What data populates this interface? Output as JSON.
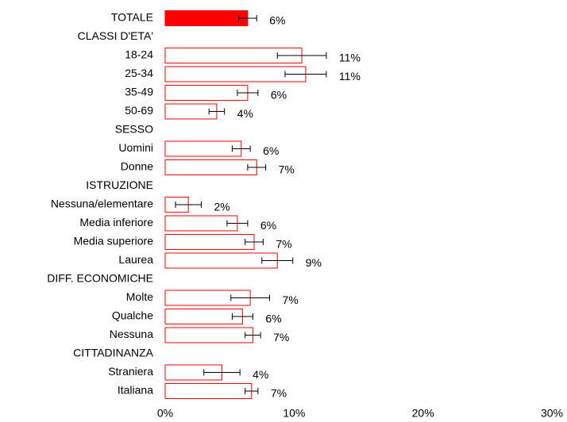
{
  "chart_data": {
    "type": "barh",
    "categories": [
      "TOTALE",
      "CLASSI D'ETA'",
      "18-24",
      "25-34",
      "35-49",
      "50-69",
      "SESSO",
      "Uomini",
      "Donne",
      "ISTRUZIONE",
      "Nessuna/elementare",
      "Media inferiore",
      "Media superiore",
      "Laurea",
      "DIFF. ECONOMICHE",
      "Molte",
      "Qualche",
      "Nessuna",
      "CITTADINANZA",
      "Straniera",
      "Italiana"
    ],
    "values": [
      6.4,
      null,
      10.6,
      10.9,
      6.4,
      4.0,
      null,
      5.9,
      7.1,
      null,
      1.8,
      5.6,
      6.9,
      8.7,
      null,
      6.6,
      6.0,
      6.8,
      null,
      4.4,
      6.7
    ],
    "value_labels": [
      "6%",
      null,
      "11%",
      "11%",
      "6%",
      "4%",
      null,
      "6%",
      "7%",
      null,
      "2%",
      "6%",
      "7%",
      "9%",
      null,
      "7%",
      "6%",
      "7%",
      null,
      "4%",
      "7%"
    ],
    "errors": [
      0.7,
      null,
      1.9,
      1.6,
      0.8,
      0.6,
      null,
      0.7,
      0.7,
      null,
      1.0,
      0.8,
      0.7,
      1.2,
      null,
      1.5,
      0.8,
      0.6,
      null,
      1.4,
      0.5
    ],
    "color": "#ff0000",
    "highlight": 0,
    "xlim": [
      0,
      30
    ],
    "xticks": [
      {
        "value": 0,
        "label": "0%"
      },
      {
        "value": 10,
        "label": "10%"
      },
      {
        "value": 20,
        "label": "20%"
      },
      {
        "value": 30,
        "label": "30%"
      }
    ]
  }
}
